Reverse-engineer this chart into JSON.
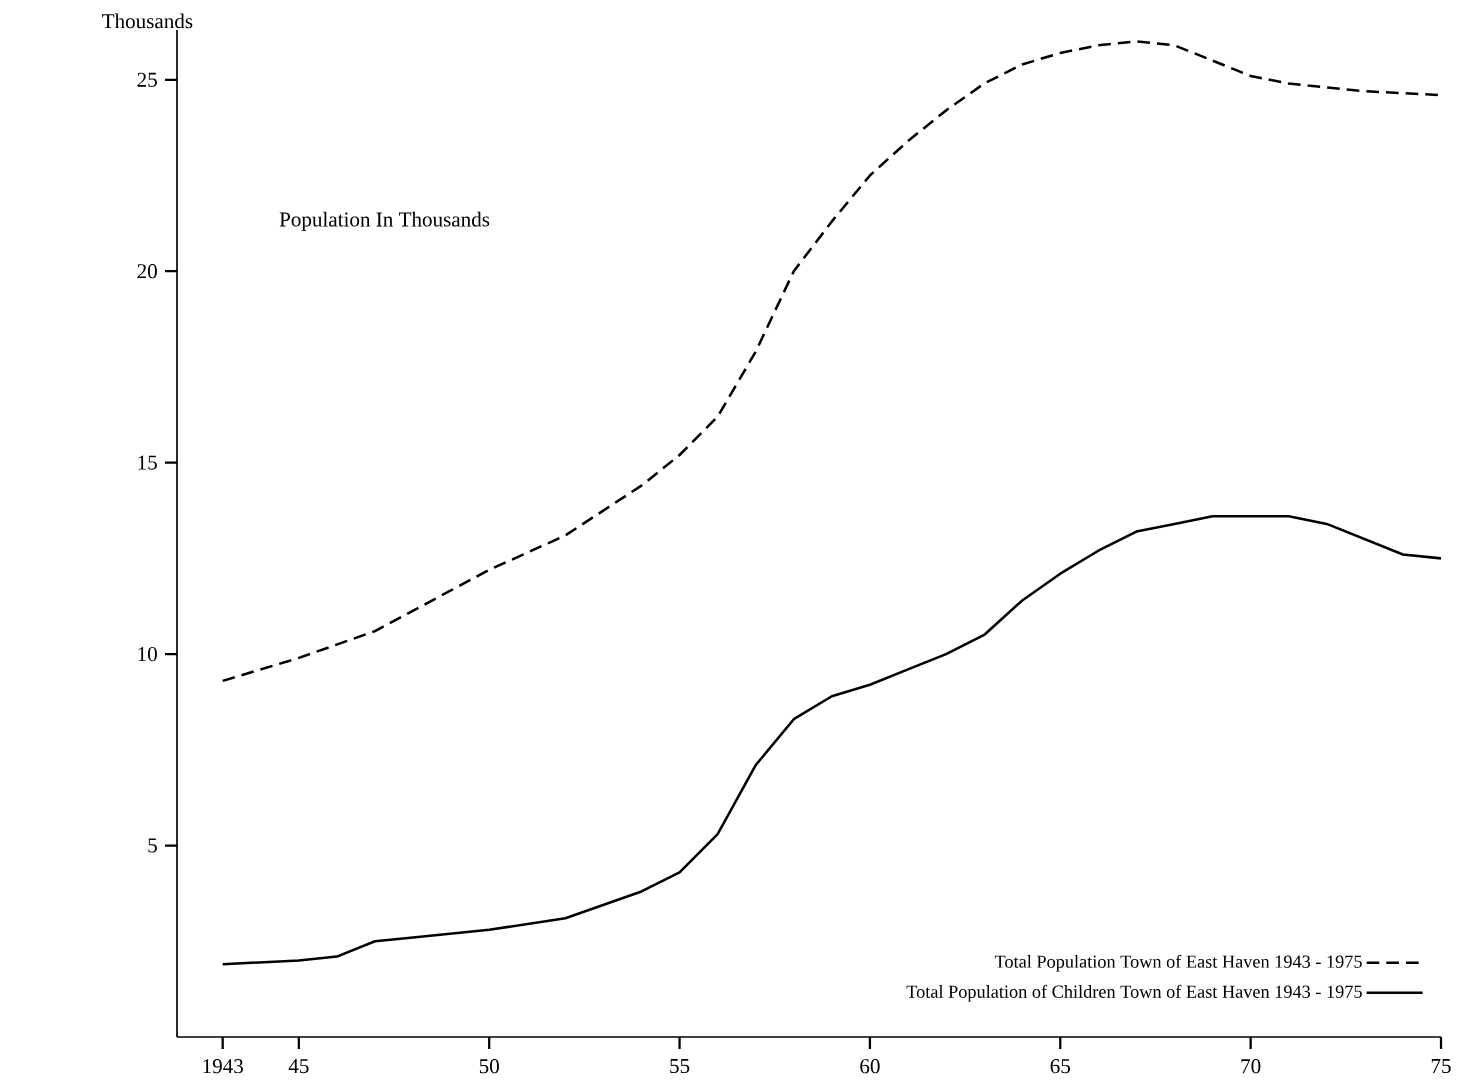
{
  "chart_data": {
    "type": "line",
    "ylabel": "Thousands",
    "annotations": [
      "Population In Thousands"
    ],
    "xlim": [
      1941.8,
      1975
    ],
    "ylim": [
      0,
      26.3
    ],
    "xticks": [
      {
        "value": 1943,
        "label": "1943"
      },
      {
        "value": 1945,
        "label": "45"
      },
      {
        "value": 1950,
        "label": "50"
      },
      {
        "value": 1955,
        "label": "55"
      },
      {
        "value": 1960,
        "label": "60"
      },
      {
        "value": 1965,
        "label": "65"
      },
      {
        "value": 1970,
        "label": "70"
      },
      {
        "value": 1975,
        "label": "75"
      }
    ],
    "yticks": [
      5,
      10,
      15,
      20,
      25
    ],
    "grid": false,
    "legend": "bottom right",
    "series": [
      {
        "name": "Total Population  Town of East Haven   1943 - 1975",
        "color": "#000000",
        "line_style": "dashed",
        "x": [
          1943,
          1945,
          1947,
          1950,
          1952,
          1954,
          1955,
          1956,
          1957,
          1958,
          1959,
          1960,
          1961,
          1962,
          1963,
          1964,
          1965,
          1966,
          1967,
          1968,
          1969,
          1970,
          1971,
          1972,
          1973,
          1975
        ],
        "values": [
          9.3,
          9.9,
          10.6,
          12.2,
          13.1,
          14.4,
          15.2,
          16.2,
          17.9,
          20.0,
          21.3,
          22.5,
          23.4,
          24.2,
          24.9,
          25.4,
          25.7,
          25.9,
          26.0,
          25.9,
          25.5,
          25.1,
          24.9,
          24.8,
          24.7,
          24.6
        ]
      },
      {
        "name": "Total Population of Children  Town of East Haven   1943 - 1975",
        "color": "#000000",
        "line_style": "solid",
        "x": [
          1943,
          1945,
          1946,
          1947,
          1948,
          1950,
          1952,
          1954,
          1955,
          1956,
          1957,
          1958,
          1959,
          1960,
          1961,
          1962,
          1963,
          1964,
          1965,
          1966,
          1967,
          1968,
          1969,
          1970,
          1971,
          1972,
          1973,
          1974,
          1975
        ],
        "values": [
          1.9,
          2.0,
          2.1,
          2.5,
          2.6,
          2.8,
          3.1,
          3.8,
          4.3,
          5.3,
          7.1,
          8.3,
          8.9,
          9.2,
          9.6,
          10.0,
          10.5,
          11.4,
          12.1,
          12.7,
          13.2,
          13.4,
          13.6,
          13.6,
          13.6,
          13.4,
          13.0,
          12.6,
          12.5
        ]
      }
    ]
  }
}
